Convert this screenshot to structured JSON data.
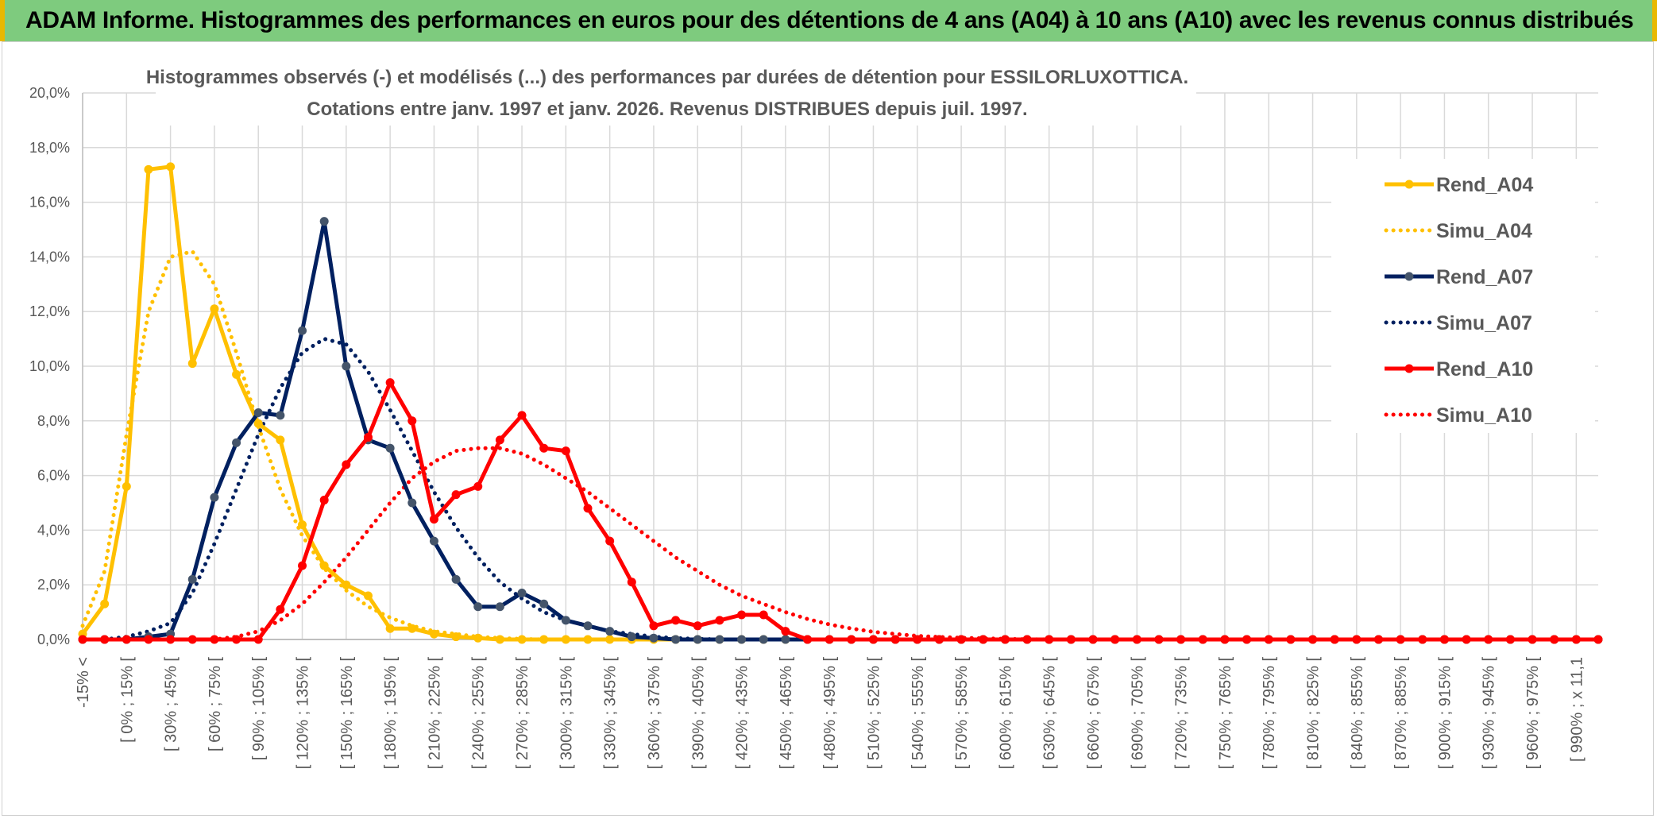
{
  "banner": {
    "title": "ADAM Informe. Histogrammes des performances en euros pour des détentions de 4 ans (A04) à 10 ans (A10) avec les revenus connus distribués"
  },
  "chart_data": {
    "type": "line",
    "title_line1": "Histogrammes observés (-) et modélisés (...) des performances par durées de détention pour ESSILORLUXOTTICA.",
    "title_line2": "Cotations entre janv. 1997 et janv. 2026. Revenus DISTRIBUES depuis juil. 1997.",
    "ylim": [
      0,
      20
    ],
    "y_ticks": [
      "0,0%",
      "2,0%",
      "4,0%",
      "6,0%",
      "8,0%",
      "10,0%",
      "12,0%",
      "14,0%",
      "16,0%",
      "18,0%",
      "20,0%"
    ],
    "x_tick_labels": [
      "-15% <",
      "[ 0% ; 15% [",
      "[ 30% ; 45% [",
      "[ 60% ; 75% [",
      "[ 90% ; 105% [",
      "[ 120% ; 135% [",
      "[ 150% ; 165% [",
      "[ 180% ; 195% [",
      "[ 210% ; 225% [",
      "[ 240% ; 255% [",
      "[ 270% ; 285% [",
      "[ 300% ; 315% [",
      "[ 330% ; 345% [",
      "[ 360% ; 375% [",
      "[ 390% ; 405% [",
      "[ 420% ; 435% [",
      "[ 450% ; 465% [",
      "[ 480% ; 495% [",
      "[ 510% ; 525% [",
      "[ 540% ; 555% [",
      "[ 570% ; 585% [",
      "[ 600% ; 615% [",
      "[ 630% ; 645% [",
      "[ 660% ; 675% [",
      "[ 690% ; 705% [",
      "[ 720% ; 735% [",
      "[ 750% ; 765% [",
      "[ 780% ; 795% [",
      "[ 810% ; 825% [",
      "[ 840% ; 855% [",
      "[ 870% ; 885% [",
      "[ 900% ; 915% [",
      "[ 930% ; 945% [",
      "[ 960% ; 975% [",
      "[ 990% ; x 11,1"
    ],
    "grid": true,
    "legend_position": "right",
    "series": [
      {
        "name": "Rend_A04",
        "style": "solid",
        "color": "#FFC000",
        "values": [
          0.2,
          1.3,
          5.6,
          17.2,
          17.3,
          10.1,
          12.1,
          9.7,
          7.9,
          7.3,
          4.2,
          2.7,
          2.0,
          1.6,
          0.4,
          0.4,
          0.2,
          0.1,
          0.05,
          0.0,
          0.0,
          0.0,
          0.0,
          0.0,
          0.0,
          0.0,
          0.0,
          0.0,
          0.0,
          0.0
        ]
      },
      {
        "name": "Simu_A04",
        "style": "dotted",
        "color": "#FFC000",
        "values": [
          0.5,
          2.5,
          7.5,
          12.0,
          14.0,
          14.2,
          13.0,
          10.5,
          7.8,
          5.5,
          3.8,
          2.6,
          1.8,
          1.2,
          0.8,
          0.5,
          0.3,
          0.2,
          0.1,
          0.05,
          0.02,
          0.0,
          0.0,
          0.0,
          0.0
        ]
      },
      {
        "name": "Rend_A07",
        "style": "solid",
        "color": "#002060",
        "values": [
          0.0,
          0.0,
          0.0,
          0.1,
          0.2,
          2.2,
          5.2,
          7.2,
          8.3,
          8.2,
          11.3,
          15.3,
          10.0,
          7.3,
          7.0,
          5.0,
          3.6,
          2.2,
          1.2,
          1.2,
          1.7,
          1.3,
          0.7,
          0.5,
          0.3,
          0.1,
          0.05,
          0.0,
          0.0,
          0.0,
          0.0,
          0.0,
          0.0,
          0.0,
          0.0,
          0.0
        ]
      },
      {
        "name": "Simu_A07",
        "style": "dotted",
        "color": "#002060",
        "values": [
          0.0,
          0.0,
          0.1,
          0.3,
          0.6,
          1.7,
          3.5,
          5.5,
          7.5,
          9.2,
          10.5,
          11.0,
          10.8,
          9.8,
          8.4,
          6.9,
          5.4,
          4.1,
          3.0,
          2.1,
          1.5,
          1.0,
          0.7,
          0.5,
          0.3,
          0.2,
          0.1,
          0.05,
          0.02,
          0.0,
          0.0,
          0.0,
          0.0,
          0.0,
          0.0,
          0.0
        ]
      },
      {
        "name": "Rend_A10",
        "style": "solid",
        "color": "#FF0000",
        "values": [
          0.0,
          0.0,
          0.0,
          0.0,
          0.0,
          0.0,
          0.0,
          0.0,
          0.0,
          1.1,
          2.7,
          5.1,
          6.4,
          7.4,
          9.4,
          8.0,
          4.4,
          5.3,
          5.6,
          7.3,
          8.2,
          7.0,
          6.9,
          4.8,
          3.6,
          2.1,
          0.5,
          0.7,
          0.5,
          0.7,
          0.9,
          0.9,
          0.3,
          0.0,
          0.0,
          0.0,
          0.0,
          0.0,
          0.0,
          0.0,
          0.0,
          0.0,
          0.0,
          0.0,
          0.0,
          0.0,
          0.0,
          0.0,
          0.0,
          0.0,
          0.0,
          0.0,
          0.0,
          0.0,
          0.0,
          0.0,
          0.0,
          0.0,
          0.0,
          0.0,
          0.0,
          0.0,
          0.0,
          0.0,
          0.0,
          0.0,
          0.0,
          0.0,
          0.0,
          0.0
        ]
      },
      {
        "name": "Simu_A10",
        "style": "dotted",
        "color": "#FF0000",
        "values": [
          0.0,
          0.0,
          0.0,
          0.0,
          0.0,
          0.0,
          0.0,
          0.1,
          0.3,
          0.7,
          1.3,
          2.1,
          3.0,
          4.0,
          5.0,
          5.9,
          6.5,
          6.9,
          7.0,
          7.0,
          6.8,
          6.4,
          5.9,
          5.4,
          4.8,
          4.2,
          3.6,
          3.0,
          2.5,
          2.0,
          1.6,
          1.3,
          1.0,
          0.75,
          0.55,
          0.4,
          0.28,
          0.2,
          0.13,
          0.09,
          0.06,
          0.04,
          0.02,
          0.01,
          0.0,
          0.0,
          0.0,
          0.0,
          0.0,
          0.0,
          0.0,
          0.0,
          0.0,
          0.0,
          0.0,
          0.0,
          0.0,
          0.0,
          0.0,
          0.0,
          0.0,
          0.0,
          0.0,
          0.0,
          0.0,
          0.0,
          0.0,
          0.0,
          0.0,
          0.0
        ]
      }
    ]
  }
}
